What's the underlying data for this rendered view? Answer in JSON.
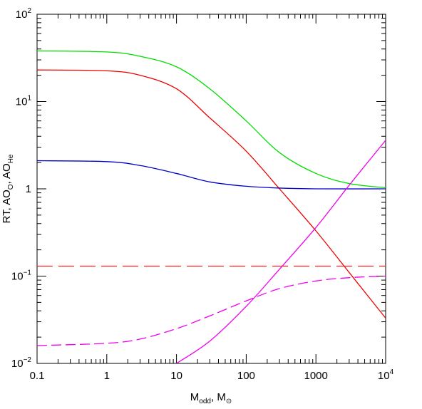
{
  "chart_data": {
    "type": "line",
    "xscale": "log",
    "yscale": "log",
    "xlim": [
      0.1,
      10000
    ],
    "ylim": [
      0.01,
      100
    ],
    "grid": false,
    "x_ticks": [
      {
        "value": 0.1,
        "label": "0.1"
      },
      {
        "value": 1,
        "label": "1"
      },
      {
        "value": 10,
        "label": "10"
      },
      {
        "value": 100,
        "label": "100"
      },
      {
        "value": 1000,
        "label": "1000"
      },
      {
        "value": 10000,
        "label": "10",
        "exp": "4"
      }
    ],
    "y_ticks": [
      {
        "value": 0.01,
        "label": "10",
        "exp": "−2"
      },
      {
        "value": 0.1,
        "label": "10",
        "exp": "−1"
      },
      {
        "value": 1,
        "label": "1",
        "exp": ""
      },
      {
        "value": 10,
        "label": "10",
        "exp": "1"
      },
      {
        "value": 100,
        "label": "10",
        "exp": "2"
      }
    ],
    "xlabel": {
      "main": "M",
      "sub": "odd",
      "sep": ",  ",
      "main2": "M",
      "sub2": "⊙"
    },
    "ylabel": {
      "p1": "RT,  AO",
      "sub1": "O",
      "p2": ",  AO",
      "sub2": "He"
    },
    "series": [
      {
        "color": "#00dd00",
        "dash": "solid",
        "x": [
          0.1,
          1,
          3,
          10,
          30,
          100,
          300,
          1000,
          3000,
          10000
        ],
        "y": [
          38,
          37,
          33,
          25,
          14,
          6,
          2.6,
          1.5,
          1.15,
          1.03
        ]
      },
      {
        "color": "#ee0000",
        "dash": "solid",
        "x": [
          0.1,
          1,
          3,
          10,
          30,
          100,
          300,
          1000,
          3000,
          10000
        ],
        "y": [
          23,
          22.5,
          20,
          14,
          6.5,
          2.7,
          1.0,
          0.33,
          0.11,
          0.033
        ]
      },
      {
        "color": "#0000cc",
        "dash": "solid",
        "x": [
          0.1,
          1,
          3,
          10,
          30,
          100,
          300,
          1000,
          10000
        ],
        "y": [
          2.1,
          2.05,
          1.85,
          1.5,
          1.2,
          1.07,
          1.02,
          1.0,
          1.0
        ]
      },
      {
        "color": "#ee00ee",
        "dash": "solid",
        "x": [
          10,
          30,
          100,
          300,
          1000,
          3000,
          10000
        ],
        "y": [
          0.01,
          0.018,
          0.045,
          0.12,
          0.36,
          1.1,
          3.6
        ]
      },
      {
        "color": "#ee00ee",
        "dash": "dashed",
        "x": [
          0.1,
          1,
          3,
          10,
          30,
          100,
          300,
          1000,
          3000,
          10000
        ],
        "y": [
          0.016,
          0.017,
          0.019,
          0.025,
          0.035,
          0.052,
          0.072,
          0.088,
          0.096,
          0.1
        ]
      },
      {
        "color": "#ee3333",
        "dash": "dashed",
        "x": [
          0.1,
          10000
        ],
        "y": [
          0.13,
          0.13
        ]
      }
    ]
  }
}
